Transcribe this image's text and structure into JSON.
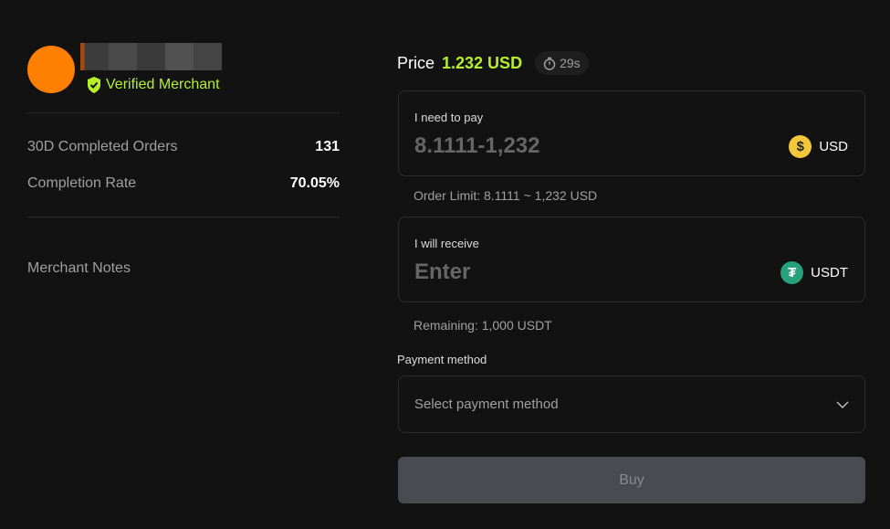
{
  "merchant": {
    "verified_label": "Verified Merchant",
    "avatar_color": "#ff7f00",
    "stats": [
      {
        "label": "30D Completed Orders",
        "value": "131"
      },
      {
        "label": "Completion Rate",
        "value": "70.05%"
      }
    ],
    "notes_label": "Merchant Notes"
  },
  "price": {
    "label": "Price",
    "value": "1.232 USD",
    "timer": "29s",
    "accent": "#b7f02b"
  },
  "pay": {
    "label": "I need to pay",
    "placeholder": "8.1111-1,232",
    "currency": "USD",
    "hint": "Order Limit: 8.1111 ~ 1,232 USD"
  },
  "receive": {
    "label": "I will receive",
    "placeholder": "Enter",
    "currency": "USDT",
    "hint": "Remaining: 1,000 USDT"
  },
  "payment": {
    "label": "Payment method",
    "placeholder": "Select payment method"
  },
  "buy_label": "Buy"
}
